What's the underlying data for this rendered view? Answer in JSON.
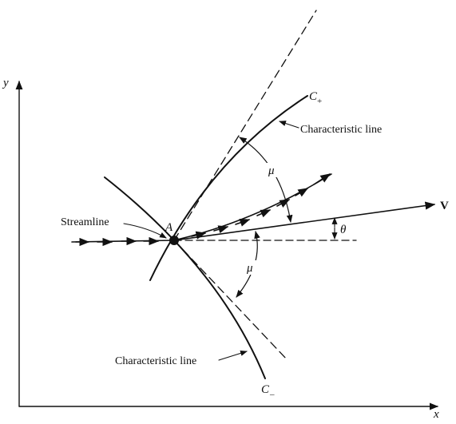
{
  "labels": {
    "y_axis": "y",
    "x_axis": "x",
    "point": "A",
    "c_plus": "C",
    "c_plus_sub": "+",
    "c_minus": "C",
    "c_minus_sub": "–",
    "characteristic_upper": "Characteristic line",
    "characteristic_lower": "Characteristic line",
    "streamline": "Streamline",
    "velocity": "V",
    "theta": "θ",
    "mu_upper": "μ",
    "mu_lower": "μ"
  }
}
